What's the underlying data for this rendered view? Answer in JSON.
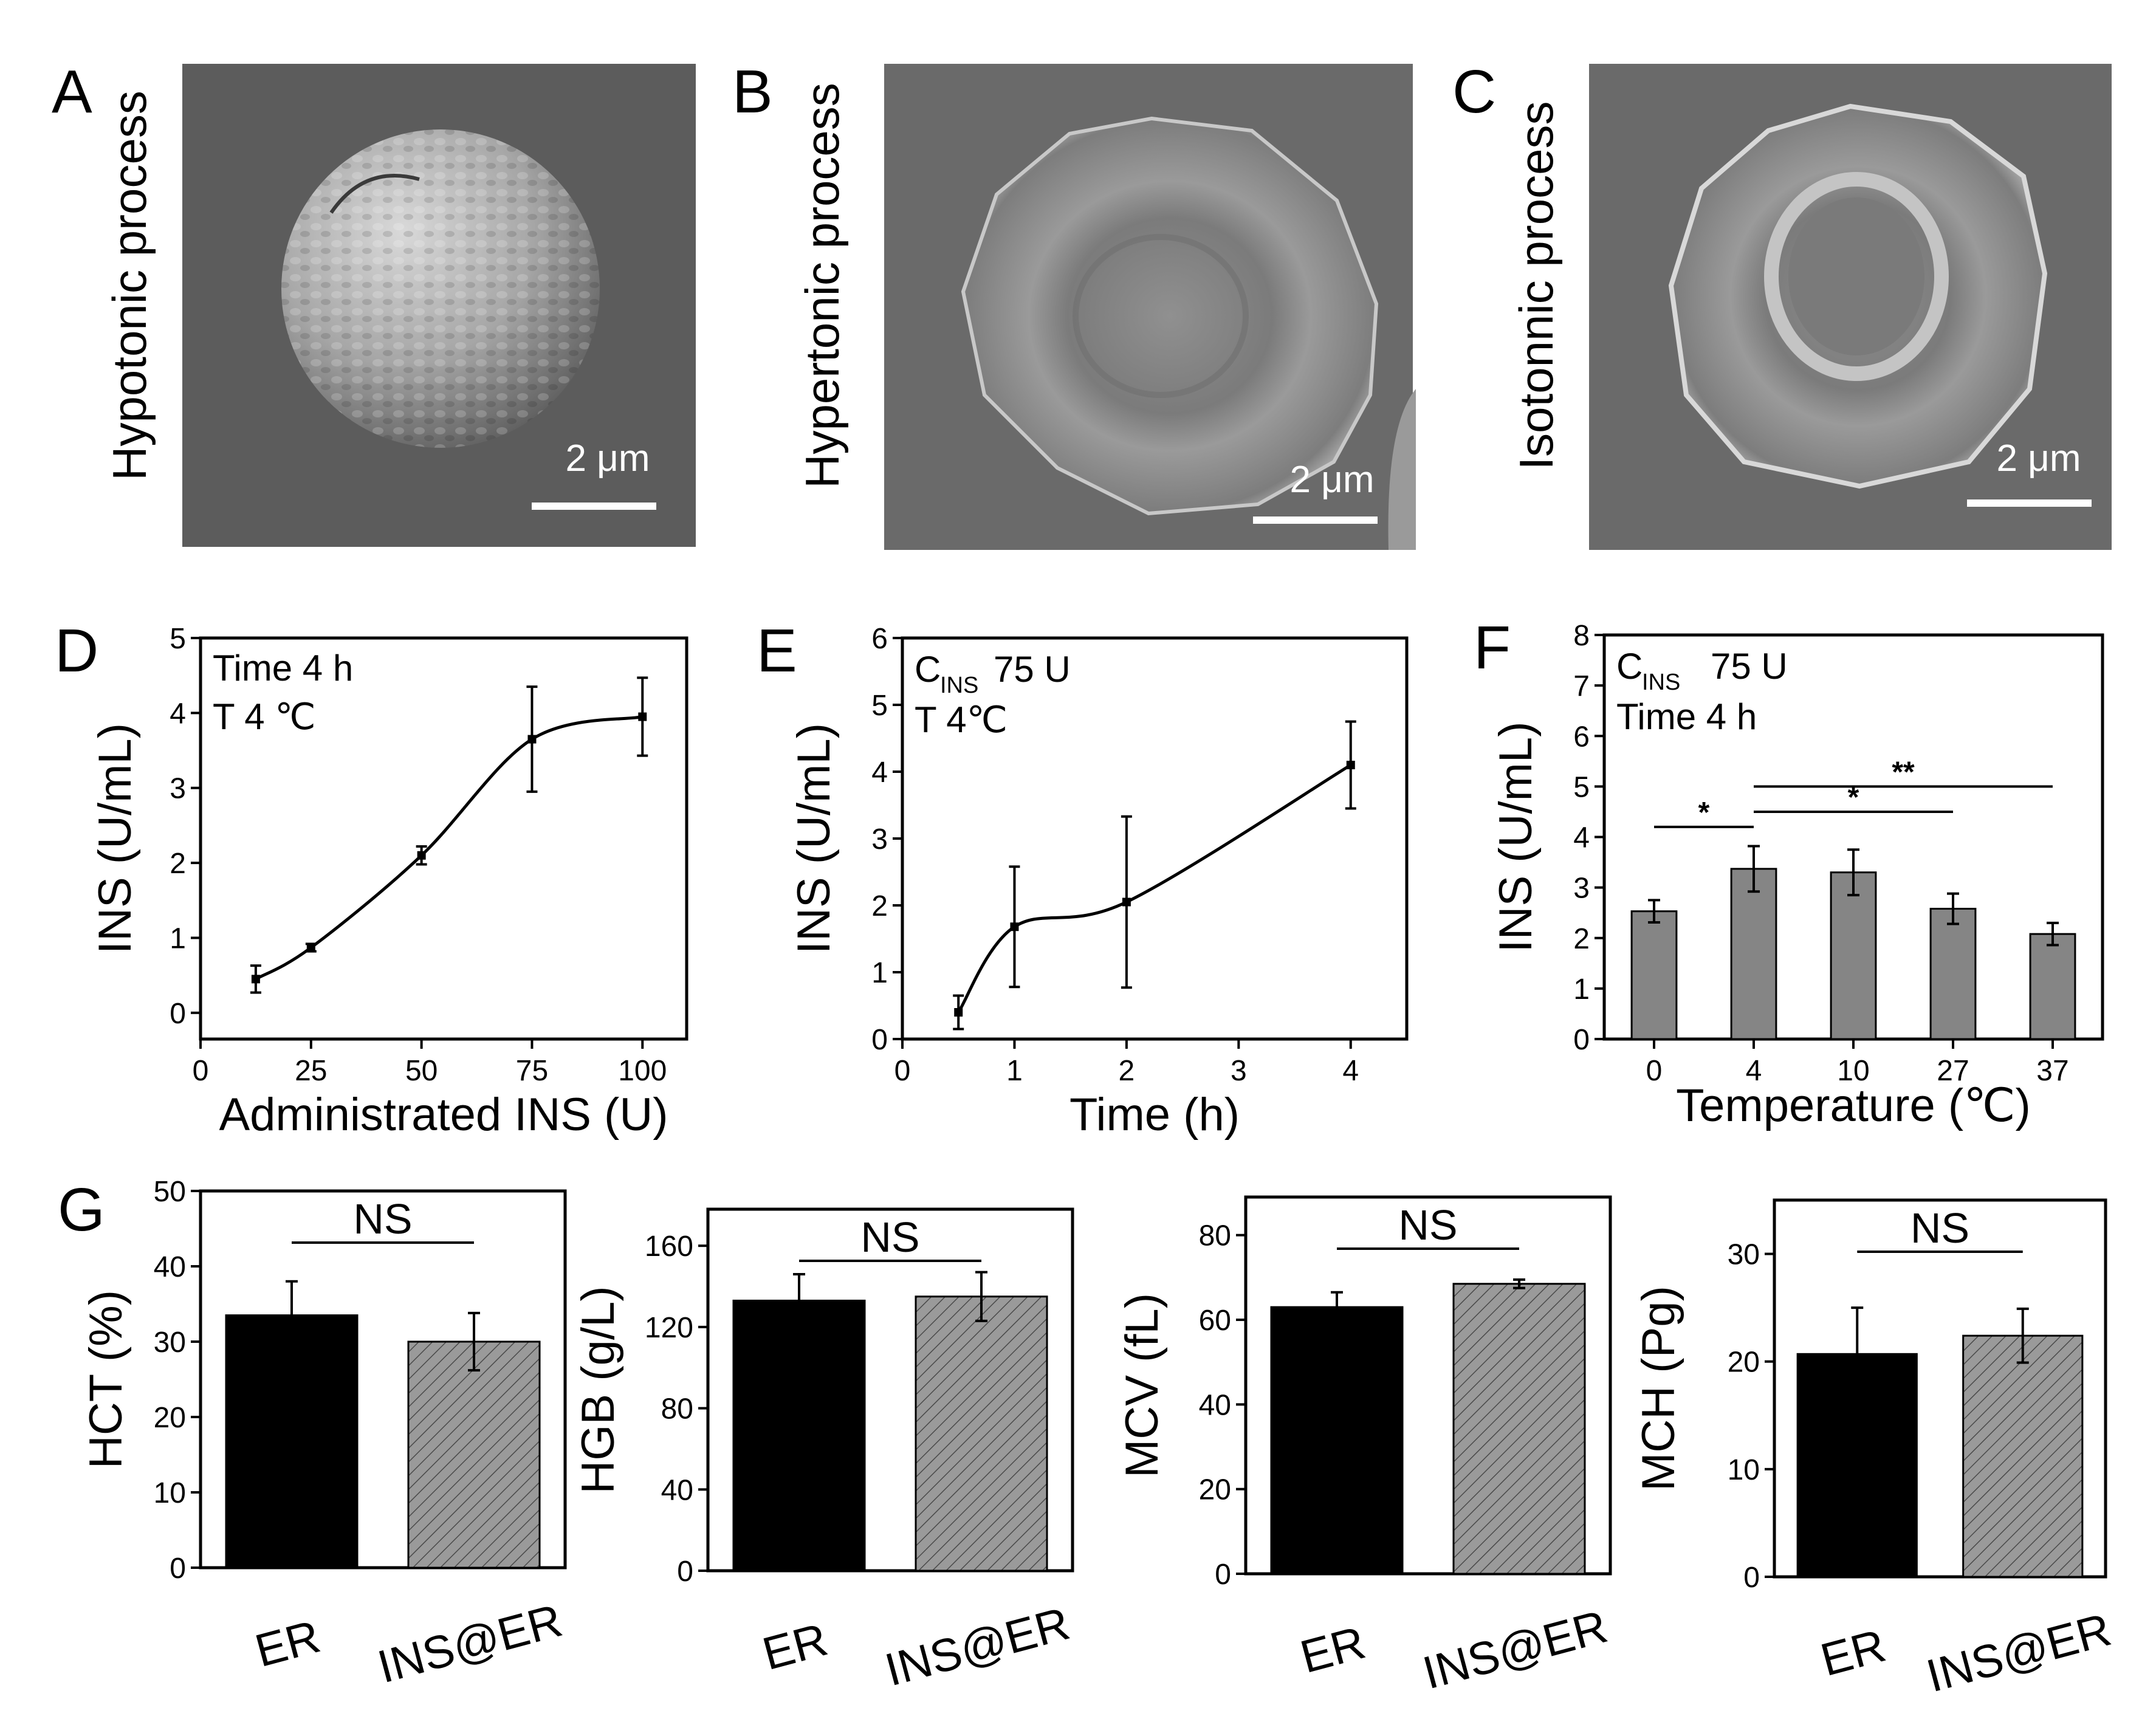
{
  "panels": {
    "A": {
      "letter": "A",
      "label": "Hypotonic process",
      "scale": "2 μm"
    },
    "B": {
      "letter": "B",
      "label": "Hypertonic process",
      "scale": "2 μm"
    },
    "C": {
      "letter": "C",
      "label": "Isotonnic process",
      "scale": "2 μm"
    }
  },
  "chart_data": [
    {
      "id": "D",
      "type": "line",
      "letter": "D",
      "xlabel": "Administrated INS (U)",
      "ylabel": "INS (U/mL)",
      "x": [
        12.5,
        25,
        50,
        75,
        100
      ],
      "y": [
        0.45,
        0.87,
        2.1,
        3.65,
        3.95
      ],
      "err": [
        0.18,
        0.05,
        0.12,
        0.7,
        0.52
      ],
      "xlim": [
        0,
        110
      ],
      "ylim": [
        -0.35,
        5
      ],
      "xticks": [
        "0",
        "25",
        "50",
        "75",
        "100"
      ],
      "xtick_values": [
        0,
        25,
        50,
        75,
        100
      ],
      "yticks": [
        "0",
        "1",
        "2",
        "3",
        "4",
        "5"
      ],
      "ytick_values": [
        0,
        1,
        2,
        3,
        4,
        5
      ],
      "annotations": [
        "Time 4 h",
        "T  4 ℃"
      ]
    },
    {
      "id": "E",
      "type": "line",
      "letter": "E",
      "xlabel": "Time (h)",
      "ylabel": "INS (U/mL)",
      "x": [
        0.5,
        1,
        2,
        4
      ],
      "y": [
        0.4,
        1.68,
        2.05,
        4.1
      ],
      "err": [
        0.25,
        0.9,
        1.28,
        0.65
      ],
      "xlim": [
        0,
        4.5
      ],
      "ylim": [
        0,
        6
      ],
      "xticks": [
        "0",
        "1",
        "2",
        "3",
        "4"
      ],
      "xtick_values": [
        0,
        1,
        2,
        3,
        4
      ],
      "yticks": [
        "0",
        "1",
        "2",
        "3",
        "4",
        "5",
        "6"
      ],
      "ytick_values": [
        0,
        1,
        2,
        3,
        4,
        5,
        6
      ],
      "annotations": [
        "C",
        "INS",
        "75 U",
        "T  4℃"
      ]
    },
    {
      "id": "F",
      "type": "bar",
      "letter": "F",
      "xlabel": "Temperature (℃)",
      "ylabel": "INS (U/mL)",
      "categories": [
        "0",
        "4",
        "10",
        "27",
        "37"
      ],
      "values": [
        2.53,
        3.37,
        3.3,
        2.58,
        2.08
      ],
      "err": [
        0.22,
        0.45,
        0.45,
        0.3,
        0.22
      ],
      "ylim": [
        0,
        8
      ],
      "yticks": [
        "0",
        "1",
        "2",
        "3",
        "4",
        "5",
        "6",
        "7",
        "8"
      ],
      "ytick_values": [
        0,
        1,
        2,
        3,
        4,
        5,
        6,
        7,
        8
      ],
      "annotations": [
        "C",
        "INS",
        "75 U",
        "Time 4 h"
      ],
      "significance": [
        {
          "from": 0,
          "to": 1,
          "label": "*",
          "y": 4.2
        },
        {
          "from": 1,
          "to": 3,
          "label": "*",
          "y": 4.5
        },
        {
          "from": 1,
          "to": 4,
          "label": "**",
          "y": 5.0
        }
      ]
    },
    {
      "id": "G1",
      "type": "bar",
      "letter": "G",
      "ylabel": "HCT (%)",
      "categories": [
        "ER",
        "INS@ER"
      ],
      "values": [
        33.5,
        30.0
      ],
      "err": [
        4.5,
        3.8
      ],
      "ylim": [
        0,
        50
      ],
      "yticks": [
        "0",
        "10",
        "20",
        "30",
        "40",
        "50"
      ],
      "ytick_values": [
        0,
        10,
        20,
        30,
        40,
        50
      ],
      "significance_label": "NS",
      "colors": [
        "#000000",
        "#8c8c8c"
      ]
    },
    {
      "id": "G2",
      "type": "bar",
      "letter": "",
      "ylabel": "HGB (g/L)",
      "categories": [
        "ER",
        "INS@ER"
      ],
      "values": [
        133,
        135
      ],
      "err": [
        13,
        12
      ],
      "ylim": [
        0,
        178
      ],
      "yticks": [
        "0",
        "40",
        "80",
        "120",
        "160"
      ],
      "ytick_values": [
        0,
        40,
        80,
        120,
        160
      ],
      "significance_label": "NS",
      "colors": [
        "#000000",
        "#8c8c8c"
      ]
    },
    {
      "id": "G3",
      "type": "bar",
      "letter": "",
      "ylabel": "MCV (fL)",
      "categories": [
        "ER",
        "INS@ER"
      ],
      "values": [
        63,
        68.5
      ],
      "err": [
        3.5,
        1.0
      ],
      "ylim": [
        0,
        89
      ],
      "yticks": [
        "0",
        "20",
        "40",
        "60",
        "80"
      ],
      "ytick_values": [
        0,
        20,
        40,
        60,
        80
      ],
      "significance_label": "NS",
      "colors": [
        "#000000",
        "#8c8c8c"
      ]
    },
    {
      "id": "G4",
      "type": "bar",
      "letter": "",
      "ylabel": "MCH (Pg)",
      "categories": [
        "ER",
        "INS@ER"
      ],
      "values": [
        20.7,
        22.4
      ],
      "err": [
        4.3,
        2.5
      ],
      "ylim": [
        0,
        35
      ],
      "yticks": [
        "0",
        "10",
        "20",
        "30"
      ],
      "ytick_values": [
        0,
        10,
        20,
        30
      ],
      "significance_label": "NS",
      "colors": [
        "#000000",
        "#8c8c8c"
      ]
    }
  ]
}
